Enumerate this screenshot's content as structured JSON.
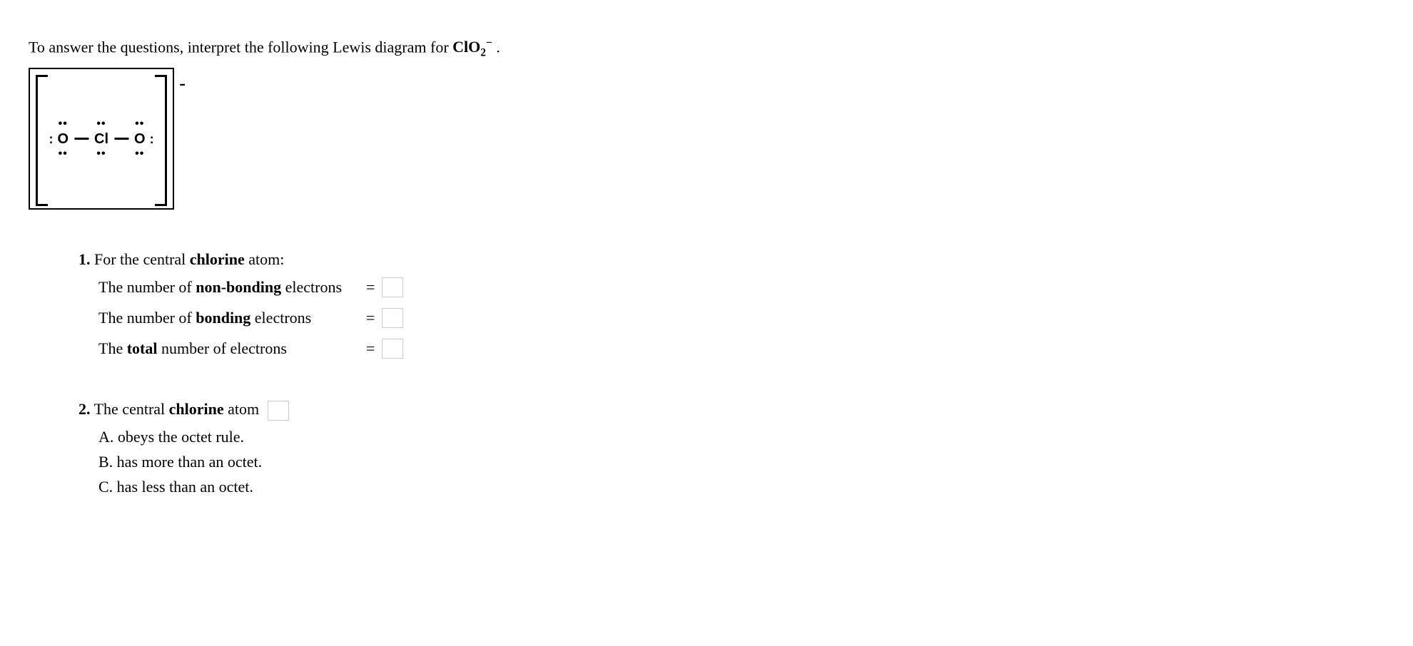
{
  "intro": {
    "prefix": "To answer the questions, interpret the following Lewis diagram for ",
    "formula_base": "ClO",
    "formula_sub": "2",
    "formula_sup": "−",
    "suffix": " ."
  },
  "diagram": {
    "charge": "-",
    "atoms": [
      {
        "symbol": "O",
        "top": "••",
        "bottom": "••",
        "left": ":",
        "right": ""
      },
      {
        "symbol": "Cl",
        "top": "••",
        "bottom": "••",
        "left": "",
        "right": ""
      },
      {
        "symbol": "O",
        "top": "••",
        "bottom": "••",
        "left": "",
        "right": ":"
      }
    ]
  },
  "q1": {
    "header_num": "1.",
    "header_text_a": " For the central ",
    "header_bold": "chlorine",
    "header_text_b": " atom:",
    "rows": [
      {
        "pre": "The number of ",
        "bold": "non-bonding",
        "post": " electrons",
        "eq": "="
      },
      {
        "pre": "The number of ",
        "bold": "bonding",
        "post": " electrons",
        "eq": "="
      },
      {
        "pre": "The ",
        "bold": "total",
        "post": " number of electrons",
        "eq": "="
      }
    ]
  },
  "q2": {
    "header_num": "2.",
    "header_text_a": " The central ",
    "header_bold": "chlorine",
    "header_text_b": " atom ",
    "options": [
      "A. obeys the octet rule.",
      "B. has more than an octet.",
      "C. has less than an octet."
    ]
  }
}
